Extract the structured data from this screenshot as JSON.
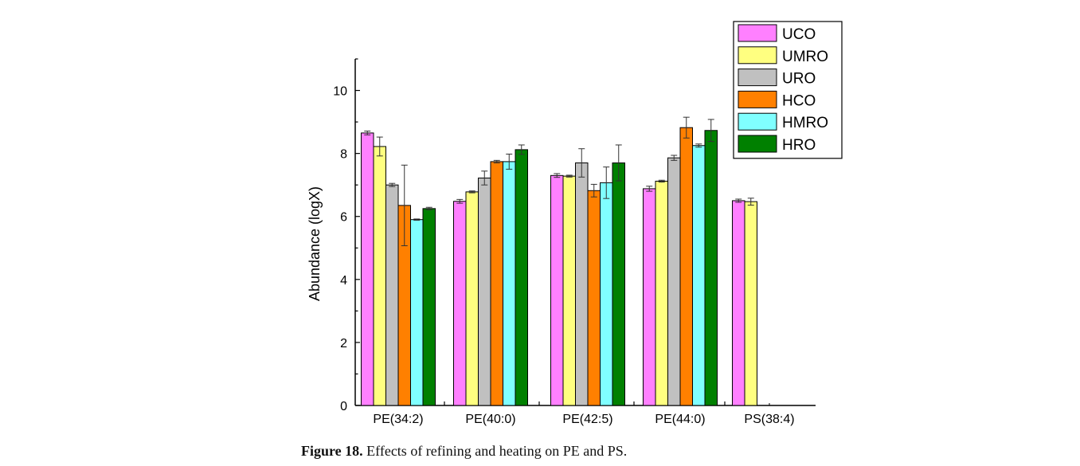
{
  "caption": {
    "label": "Figure 18.",
    "text": "Effects of refining and heating on PE and PS."
  },
  "chart_data": {
    "type": "bar",
    "ylabel": "Abundance (logX)",
    "xlabel": "",
    "ylim": [
      0,
      11
    ],
    "yticks": [
      0,
      2,
      4,
      6,
      8,
      10
    ],
    "grid": false,
    "legend_position": "top-right",
    "categories": [
      "PE(34:2)",
      "PE(40:0)",
      "PE(42:5)",
      "PE(44:0)",
      "PS(38:4)"
    ],
    "series": [
      {
        "name": "UCO",
        "color": "#ff80ff",
        "values": [
          8.65,
          6.48,
          7.3,
          6.88,
          6.5
        ],
        "errors": [
          0.06,
          0.06,
          0.06,
          0.08,
          0.05
        ]
      },
      {
        "name": "UMRO",
        "color": "#ffff80",
        "values": [
          8.22,
          6.78,
          7.28,
          7.12,
          6.47
        ],
        "errors": [
          0.3,
          0.03,
          0.03,
          0.03,
          0.11
        ]
      },
      {
        "name": "URO",
        "color": "#c0c0c0",
        "values": [
          7.0,
          7.22,
          7.7,
          7.86,
          null
        ],
        "errors": [
          0.05,
          0.22,
          0.45,
          0.08,
          null
        ]
      },
      {
        "name": "HCO",
        "color": "#ff8000",
        "values": [
          6.35,
          7.74,
          6.82,
          8.82,
          null
        ],
        "errors": [
          1.28,
          0.04,
          0.2,
          0.33,
          null
        ]
      },
      {
        "name": "HMRO",
        "color": "#80ffff",
        "values": [
          5.9,
          7.74,
          7.07,
          8.25,
          null
        ],
        "errors": [
          0.02,
          0.24,
          0.5,
          0.05,
          null
        ]
      },
      {
        "name": "HRO",
        "color": "#008000",
        "values": [
          6.25,
          8.12,
          7.7,
          8.73,
          null
        ],
        "errors": [
          0.04,
          0.15,
          0.57,
          0.35,
          null
        ]
      }
    ]
  }
}
